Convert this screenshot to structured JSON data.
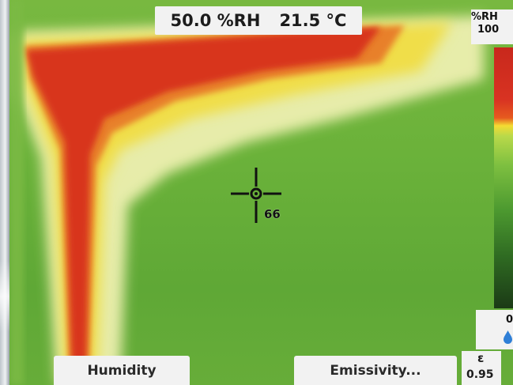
{
  "header": {
    "humidity_reading": "50.0 %RH",
    "temperature_reading": "21.5 °C"
  },
  "crosshair": {
    "value": "66"
  },
  "scale": {
    "unit": "%RH",
    "max": "100",
    "min": "0",
    "drop_icon": "water-drop-icon"
  },
  "softkeys": {
    "left": "Humidity",
    "right": "Emissivity..."
  },
  "emissivity": {
    "symbol": "ε",
    "value": "0.95"
  },
  "colors": {
    "hot": "#d93a22",
    "warm": "#f2dc47",
    "cool": "#6db33a"
  }
}
